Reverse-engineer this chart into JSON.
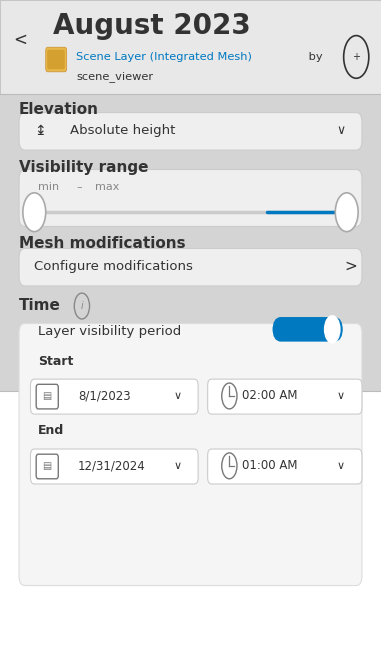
{
  "bg_color": "#d4d4d4",
  "white_panel_color": "#ffffff",
  "title": "August 2023",
  "back_arrow": "<",
  "link_text": "Scene Layer (Integrated Mesh)",
  "by_text": " by",
  "scene_viewer": "scene_viewer",
  "section_elevation": "Elevation",
  "dropdown_elevation": "Absolute height",
  "section_visibility": "Visibility range",
  "slider_min": "min",
  "slider_max": "max",
  "slider_color": "#0079c1",
  "section_mesh": "Mesh modifications",
  "dropdown_mesh": "Configure modifications",
  "section_time": "Time",
  "toggle_label": "Layer visibility period",
  "toggle_color": "#0079c1",
  "start_label": "Start",
  "start_date": "8/1/2023",
  "start_time": "02:00 AM",
  "end_label": "End",
  "end_date": "12/31/2024",
  "end_time": "01:00 AM",
  "link_color": "#0079c1",
  "text_color": "#333333",
  "border_color": "#cccccc",
  "section_fontsize": 11,
  "title_fontsize": 20
}
